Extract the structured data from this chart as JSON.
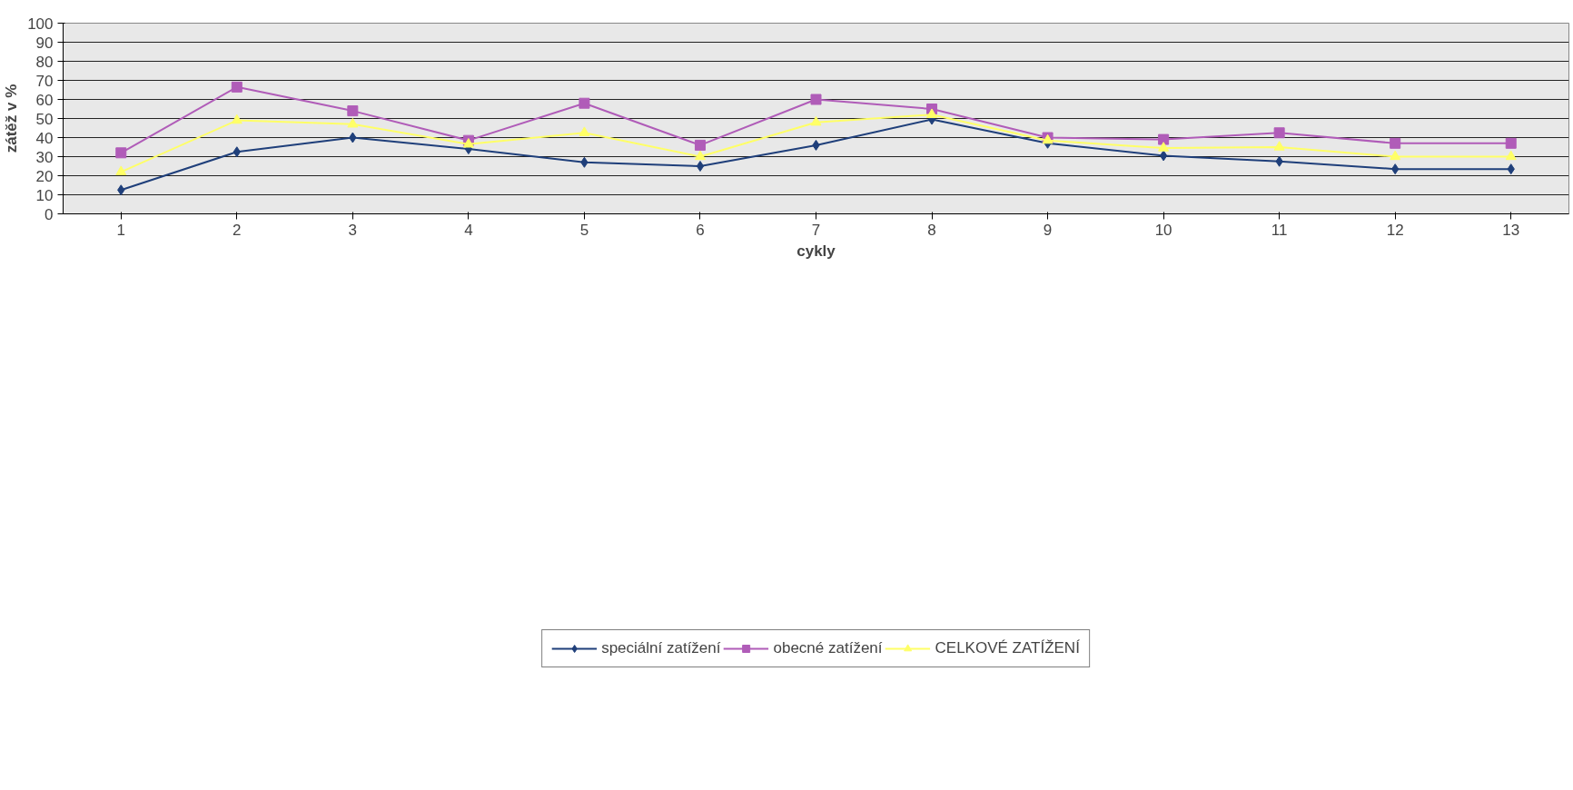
{
  "chart_data": {
    "type": "line",
    "xlabel": "cykly",
    "ylabel": "zátěž v %",
    "categories": [
      "1",
      "2",
      "3",
      "4",
      "5",
      "6",
      "7",
      "8",
      "9",
      "10",
      "11",
      "12",
      "13"
    ],
    "series": [
      {
        "name": "speciální zatížení",
        "color": "#1f3f7a",
        "marker": "diamond",
        "values": [
          12.5,
          32.5,
          40,
          34,
          27,
          25,
          36,
          49.5,
          37,
          30.5,
          27.5,
          23.5,
          23.5
        ]
      },
      {
        "name": "obecné zatížení",
        "color": "#b05cb8",
        "marker": "square",
        "values": [
          32,
          66.5,
          54,
          38.5,
          58,
          36,
          60,
          55,
          40,
          39,
          42.5,
          37,
          37
        ]
      },
      {
        "name": "CELKOVÉ ZATÍŽENÍ",
        "color": "#ffff66",
        "marker": "triangle",
        "values": [
          22,
          49,
          47,
          36.5,
          42.5,
          30,
          48,
          52,
          38.5,
          34.5,
          35,
          30,
          30
        ]
      }
    ],
    "ylim": [
      0,
      100
    ],
    "yticks": [
      0,
      10,
      20,
      30,
      40,
      50,
      60,
      70,
      80,
      90,
      100
    ],
    "grid": "y",
    "legend": "bottom"
  }
}
